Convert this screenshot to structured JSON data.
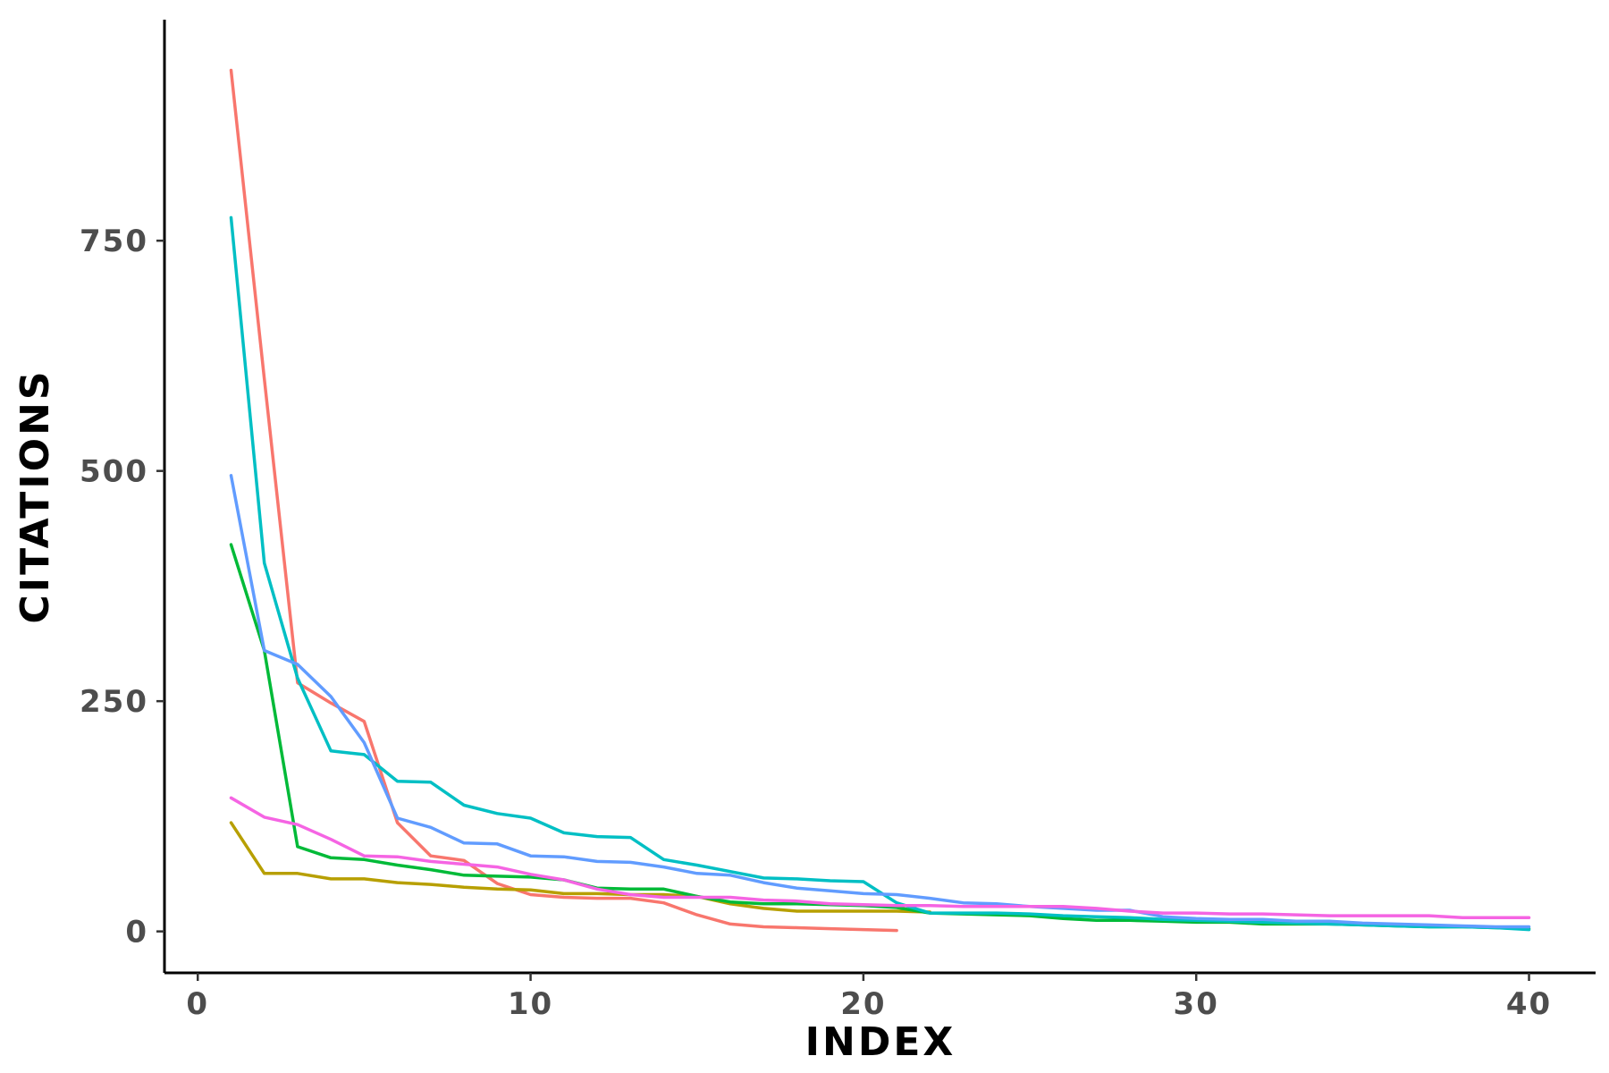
{
  "chart_data": {
    "type": "line",
    "title": "",
    "xlabel": "INDEX",
    "ylabel": "CITATIONS",
    "xlim": [
      -1,
      42
    ],
    "ylim": [
      -45,
      990
    ],
    "xticks": [
      0,
      10,
      20,
      30,
      40
    ],
    "yticks": [
      0,
      250,
      500,
      750
    ],
    "grid": false,
    "legend": "none",
    "series": [
      {
        "color": "#F8766D",
        "x": [
          1,
          2,
          3,
          4,
          5,
          6,
          7,
          8,
          9,
          10,
          11,
          12,
          13,
          14,
          15,
          16,
          17,
          18,
          19,
          20,
          21
        ],
        "y": [
          935,
          600,
          270,
          248,
          228,
          118,
          82,
          77,
          52,
          40,
          37,
          36,
          36,
          31,
          18,
          8,
          5,
          4,
          3,
          2,
          1
        ]
      },
      {
        "color": "#B79F00",
        "x": [
          1,
          2,
          3,
          4,
          5,
          6,
          7,
          8,
          9,
          10,
          11,
          12,
          13,
          14,
          15,
          16,
          17,
          18,
          19,
          20,
          21,
          22
        ],
        "y": [
          118,
          63,
          63,
          57,
          57,
          53,
          51,
          48,
          46,
          45,
          41,
          41,
          40,
          40,
          38,
          30,
          25,
          22,
          22,
          22,
          22,
          21
        ]
      },
      {
        "color": "#00BA38",
        "x": [
          1,
          2,
          3,
          4,
          5,
          6,
          7,
          8,
          9,
          10,
          11,
          12,
          13,
          14,
          15,
          16,
          17,
          18,
          19,
          20,
          21,
          22,
          23,
          24,
          25,
          26,
          27,
          28,
          29,
          30,
          31,
          32,
          33,
          34,
          35,
          36,
          37,
          38,
          39,
          40
        ],
        "y": [
          420,
          305,
          92,
          80,
          78,
          72,
          67,
          61,
          60,
          59,
          56,
          47,
          46,
          46,
          38,
          32,
          30,
          30,
          29,
          28,
          26,
          20,
          19,
          18,
          17,
          14,
          12,
          12,
          11,
          10,
          10,
          8,
          8,
          8,
          7,
          6,
          5,
          5,
          4,
          3
        ]
      },
      {
        "color": "#00BFC4",
        "x": [
          1,
          2,
          3,
          4,
          5,
          6,
          7,
          8,
          9,
          10,
          11,
          12,
          13,
          14,
          15,
          16,
          17,
          18,
          19,
          20,
          21,
          22,
          23,
          24,
          25,
          26,
          27,
          28,
          29,
          30,
          31,
          32,
          33,
          34,
          35,
          36,
          37,
          38,
          39,
          40
        ],
        "y": [
          775,
          400,
          275,
          196,
          192,
          163,
          162,
          137,
          128,
          123,
          107,
          103,
          102,
          78,
          72,
          65,
          58,
          57,
          55,
          54,
          31,
          20,
          20,
          20,
          19,
          17,
          16,
          15,
          13,
          12,
          11,
          10,
          9,
          8,
          7,
          6,
          5,
          5,
          4,
          2
        ]
      },
      {
        "color": "#619CFF",
        "x": [
          1,
          2,
          3,
          4,
          5,
          6,
          7,
          8,
          9,
          10,
          11,
          12,
          13,
          14,
          15,
          16,
          17,
          18,
          19,
          20,
          21,
          22,
          23,
          24,
          25,
          26,
          27,
          28,
          29,
          30,
          31,
          32,
          33,
          34,
          35,
          36,
          37,
          38,
          39,
          40
        ],
        "y": [
          495,
          305,
          290,
          255,
          205,
          123,
          113,
          96,
          95,
          82,
          81,
          76,
          75,
          70,
          63,
          61,
          53,
          47,
          44,
          41,
          40,
          36,
          31,
          30,
          27,
          25,
          23,
          23,
          16,
          14,
          13,
          13,
          11,
          11,
          9,
          8,
          7,
          6,
          5,
          5
        ]
      },
      {
        "color": "#F564E3",
        "x": [
          1,
          2,
          3,
          4,
          5,
          6,
          7,
          8,
          9,
          10,
          11,
          12,
          13,
          14,
          15,
          16,
          17,
          18,
          19,
          20,
          21,
          22,
          23,
          24,
          25,
          26,
          27,
          28,
          29,
          30,
          31,
          32,
          33,
          34,
          35,
          36,
          37,
          38,
          39,
          40
        ],
        "y": [
          145,
          124,
          116,
          100,
          82,
          81,
          76,
          73,
          70,
          62,
          56,
          46,
          40,
          37,
          37,
          37,
          34,
          33,
          30,
          29,
          28,
          28,
          27,
          27,
          27,
          27,
          25,
          22,
          20,
          20,
          19,
          19,
          18,
          17,
          17,
          17,
          17,
          15,
          15,
          15
        ]
      }
    ]
  }
}
